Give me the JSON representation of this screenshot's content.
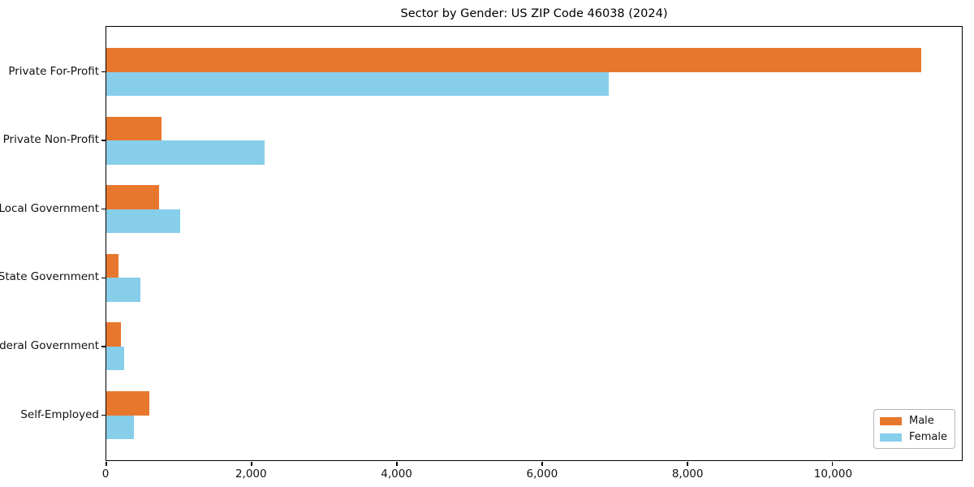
{
  "title": "Sector by Gender: US ZIP Code 46038 (2024)",
  "chart_data": {
    "type": "bar",
    "orientation": "horizontal",
    "title": "Sector by Gender: US ZIP Code 46038 (2024)",
    "categories": [
      "Private For-Profit",
      "Private Non-Profit",
      "Local Government",
      "State Government",
      "Federal Government",
      "Self-Employed"
    ],
    "series": [
      {
        "name": "Male",
        "color": "#e8772e",
        "values": [
          11220,
          760,
          730,
          170,
          200,
          590
        ]
      },
      {
        "name": "Female",
        "color": "#87ceeb",
        "values": [
          6920,
          2180,
          1020,
          470,
          250,
          380
        ]
      }
    ],
    "xlabel": "",
    "ylabel": "",
    "xlim": [
      0,
      11780
    ],
    "xticks": [
      0,
      2000,
      4000,
      6000,
      8000,
      10000
    ],
    "xtick_labels": [
      "0",
      "2,000",
      "4,000",
      "6,000",
      "8,000",
      "10,000"
    ],
    "grid": false,
    "legend_position": "lower right",
    "legend": {
      "items": [
        {
          "label": "Male",
          "color": "#e8772e"
        },
        {
          "label": "Female",
          "color": "#87ceeb"
        }
      ]
    }
  }
}
